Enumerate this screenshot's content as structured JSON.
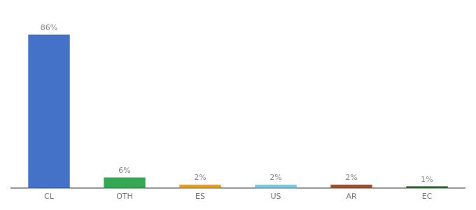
{
  "chart_data": {
    "type": "bar",
    "categories": [
      "CL",
      "OTH",
      "ES",
      "US",
      "AR",
      "EC"
    ],
    "values": [
      86,
      6,
      2,
      2,
      2,
      1
    ],
    "value_labels": [
      "86%",
      "6%",
      "2%",
      "2%",
      "2%",
      "1%"
    ],
    "data_labels": true,
    "colors": [
      "#4472c9",
      "#34a853",
      "#e8a020",
      "#7ec8e3",
      "#a0522d",
      "#2d6a2d"
    ],
    "ylim": [
      0,
      96
    ],
    "grid": false,
    "tick_labels": "x"
  }
}
